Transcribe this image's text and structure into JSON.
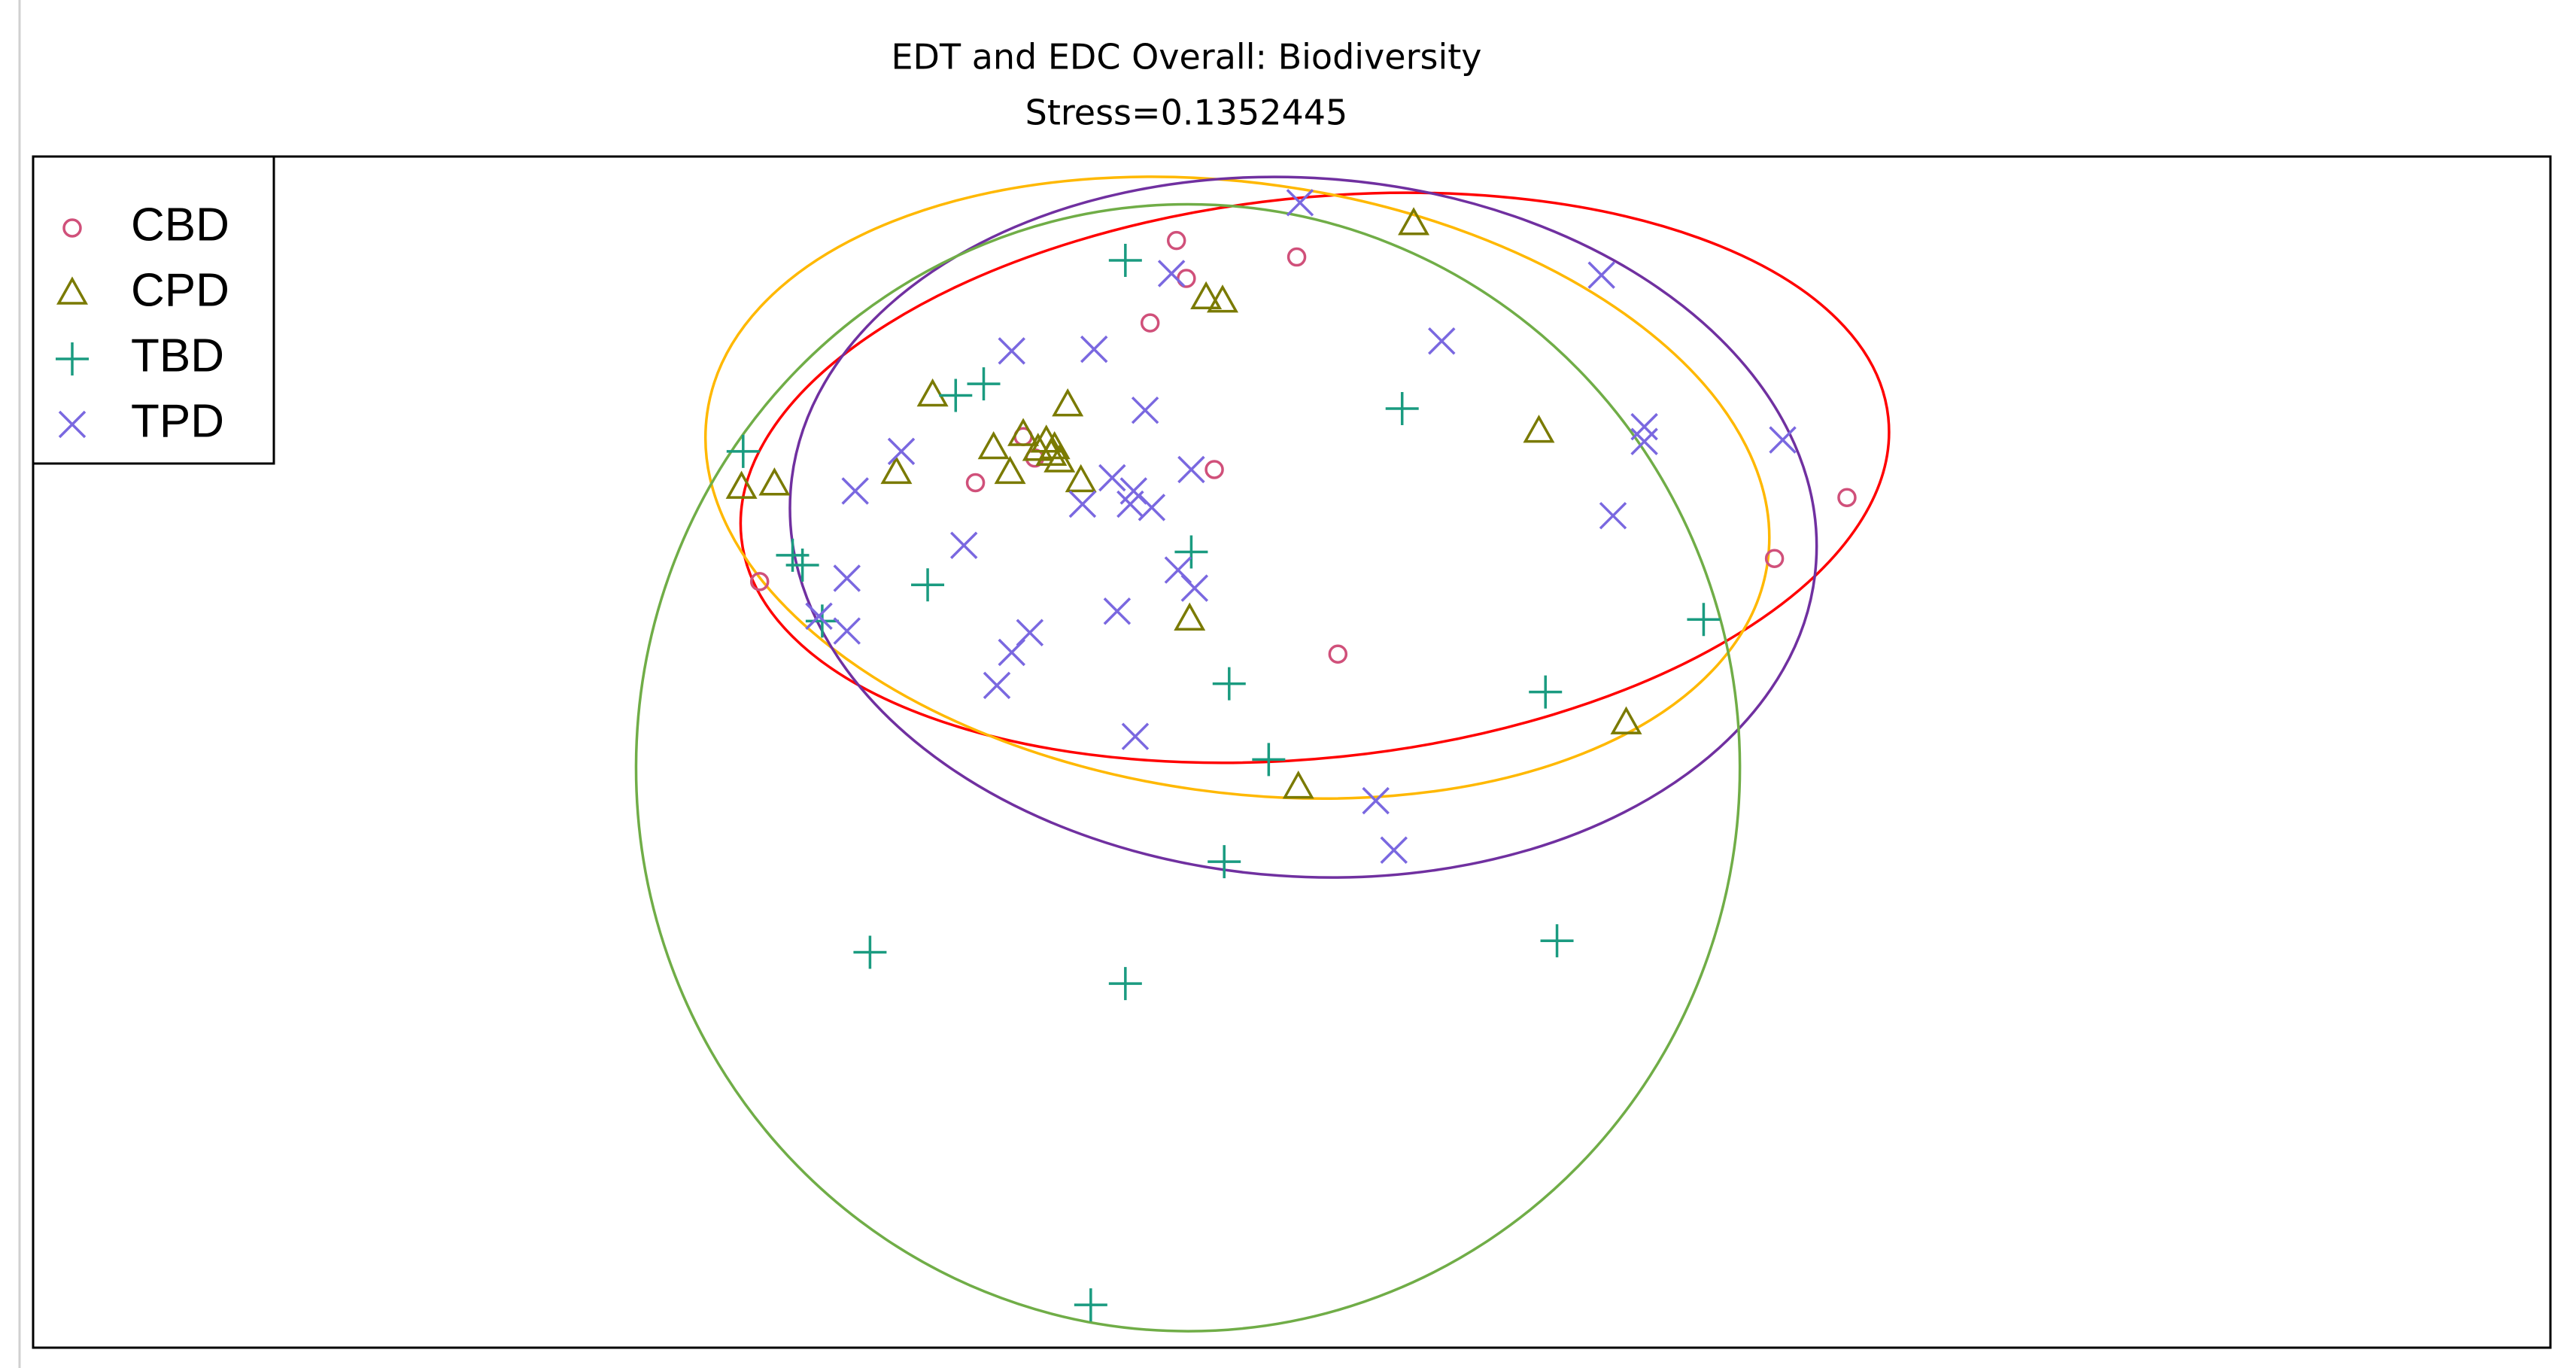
{
  "chart_data": {
    "type": "scatter",
    "title": "EDT and EDC Overall: Biodiversity",
    "subtitle": "Stress=0.1352445",
    "xlim": [
      0,
      1528
    ],
    "ylim": [
      0,
      723
    ],
    "legend": "top-left",
    "series": [
      {
        "name": "CBD",
        "color": "#d0507a",
        "marker": "circle",
        "x": [
          694,
          700,
          767,
          678,
          601,
          608,
          572,
          717,
          441,
          792,
          1057,
          1101
        ],
        "y": [
          672,
          649,
          662,
          622,
          553,
          540,
          525,
          533,
          465,
          421,
          479,
          516
        ]
      },
      {
        "name": "CPD",
        "color": "#7a7a00",
        "marker": "triangle",
        "x": [
          838,
          712,
          722,
          546,
          628,
          914,
          583,
          601,
          615,
          620,
          623,
          618,
          610,
          593,
          524,
          430,
          450,
          636,
          702,
          967,
          768
        ],
        "y": [
          682,
          637,
          635,
          578,
          572,
          556,
          546,
          554,
          550,
          546,
          538,
          542,
          545,
          531,
          531,
          522,
          524,
          526,
          442,
          379,
          340
        ]
      },
      {
        "name": "TBD",
        "color": "#1a9b80",
        "marker": "plus",
        "x": [
          663,
          577,
          560,
          831,
          431,
          703,
          461,
          467,
          543,
          479,
          1014,
          726,
          918,
          750,
          723,
          508,
          925,
          663,
          642
        ],
        "y": [
          660,
          585,
          578,
          570,
          544,
          483,
          481,
          475,
          463,
          441,
          442,
          403,
          398,
          357,
          295,
          240,
          247,
          221,
          26
        ]
      },
      {
        "name": "TPD",
        "color": "#7a68e0",
        "marker": "cross",
        "x": [
          769,
          691,
          952,
          594,
          644,
          855,
          675,
          978,
          978,
          1062,
          527,
          499,
          655,
          703,
          666,
          679,
          637,
          668,
          959,
          565,
          494,
          695,
          705,
          658,
          605,
          594,
          585,
          477,
          494,
          669,
          815,
          826
        ],
        "y": [
          695,
          652,
          651,
          605,
          606,
          611,
          569,
          559,
          550,
          551,
          544,
          520,
          528,
          533,
          512,
          510,
          512,
          520,
          505,
          487,
          467,
          472,
          461,
          447,
          434,
          422,
          402,
          444,
          435,
          371,
          332,
          302
        ]
      }
    ],
    "ellipses": [
      {
        "color": "#ff0000",
        "cx": 778,
        "cy": 528,
        "rx": 350,
        "ry": 170,
        "angle": 6
      },
      {
        "color": "#ffb800",
        "cx": 731,
        "cy": 522,
        "rx": 325,
        "ry": 185,
        "angle": -8
      },
      {
        "color": "#7030a0",
        "cx": 771,
        "cy": 498,
        "rx": 312,
        "ry": 212,
        "angle": -4
      },
      {
        "color": "#70ad47",
        "cx": 701,
        "cy": 352,
        "rx": 335,
        "ry": 342,
        "angle": 0
      }
    ]
  }
}
